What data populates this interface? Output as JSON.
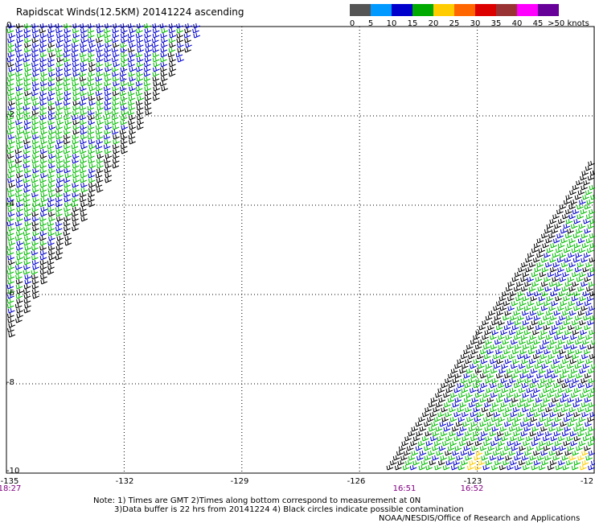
{
  "title": "Rapidscat Winds(12.5KM) 20141224 ascending",
  "colorbar": {
    "colors": [
      "#555555",
      "#0099ff",
      "#0000cc",
      "#00aa00",
      "#ffcc00",
      "#ff6600",
      "#dd0000",
      "#993333",
      "#ff00ff",
      "#660099"
    ],
    "ticks": [
      "0",
      "5",
      "10",
      "15",
      "20",
      "25",
      "30",
      "35",
      "40",
      "45",
      ">50 knots"
    ]
  },
  "map": {
    "lon_labels": [
      "-135",
      "-132",
      "-129",
      "-126",
      "-123",
      "-12"
    ],
    "lat_labels": [
      "0",
      "-2",
      "-4",
      "-6",
      "-8",
      "-10"
    ],
    "time_labels": [
      "18:27",
      "16:51",
      "16:52"
    ],
    "lon_range": [
      -135,
      -120
    ],
    "lat_range": [
      -10,
      0
    ]
  },
  "notes": {
    "line1": "Note: 1) Times are GMT 2)Times along bottom correspond to measurement at 0N",
    "line2": "3)Data buffer is 22 hrs from 20141224 4) Black circles indicate possible contamination",
    "line3": "NOAA/NESDIS/Office of Research and Applications"
  }
}
